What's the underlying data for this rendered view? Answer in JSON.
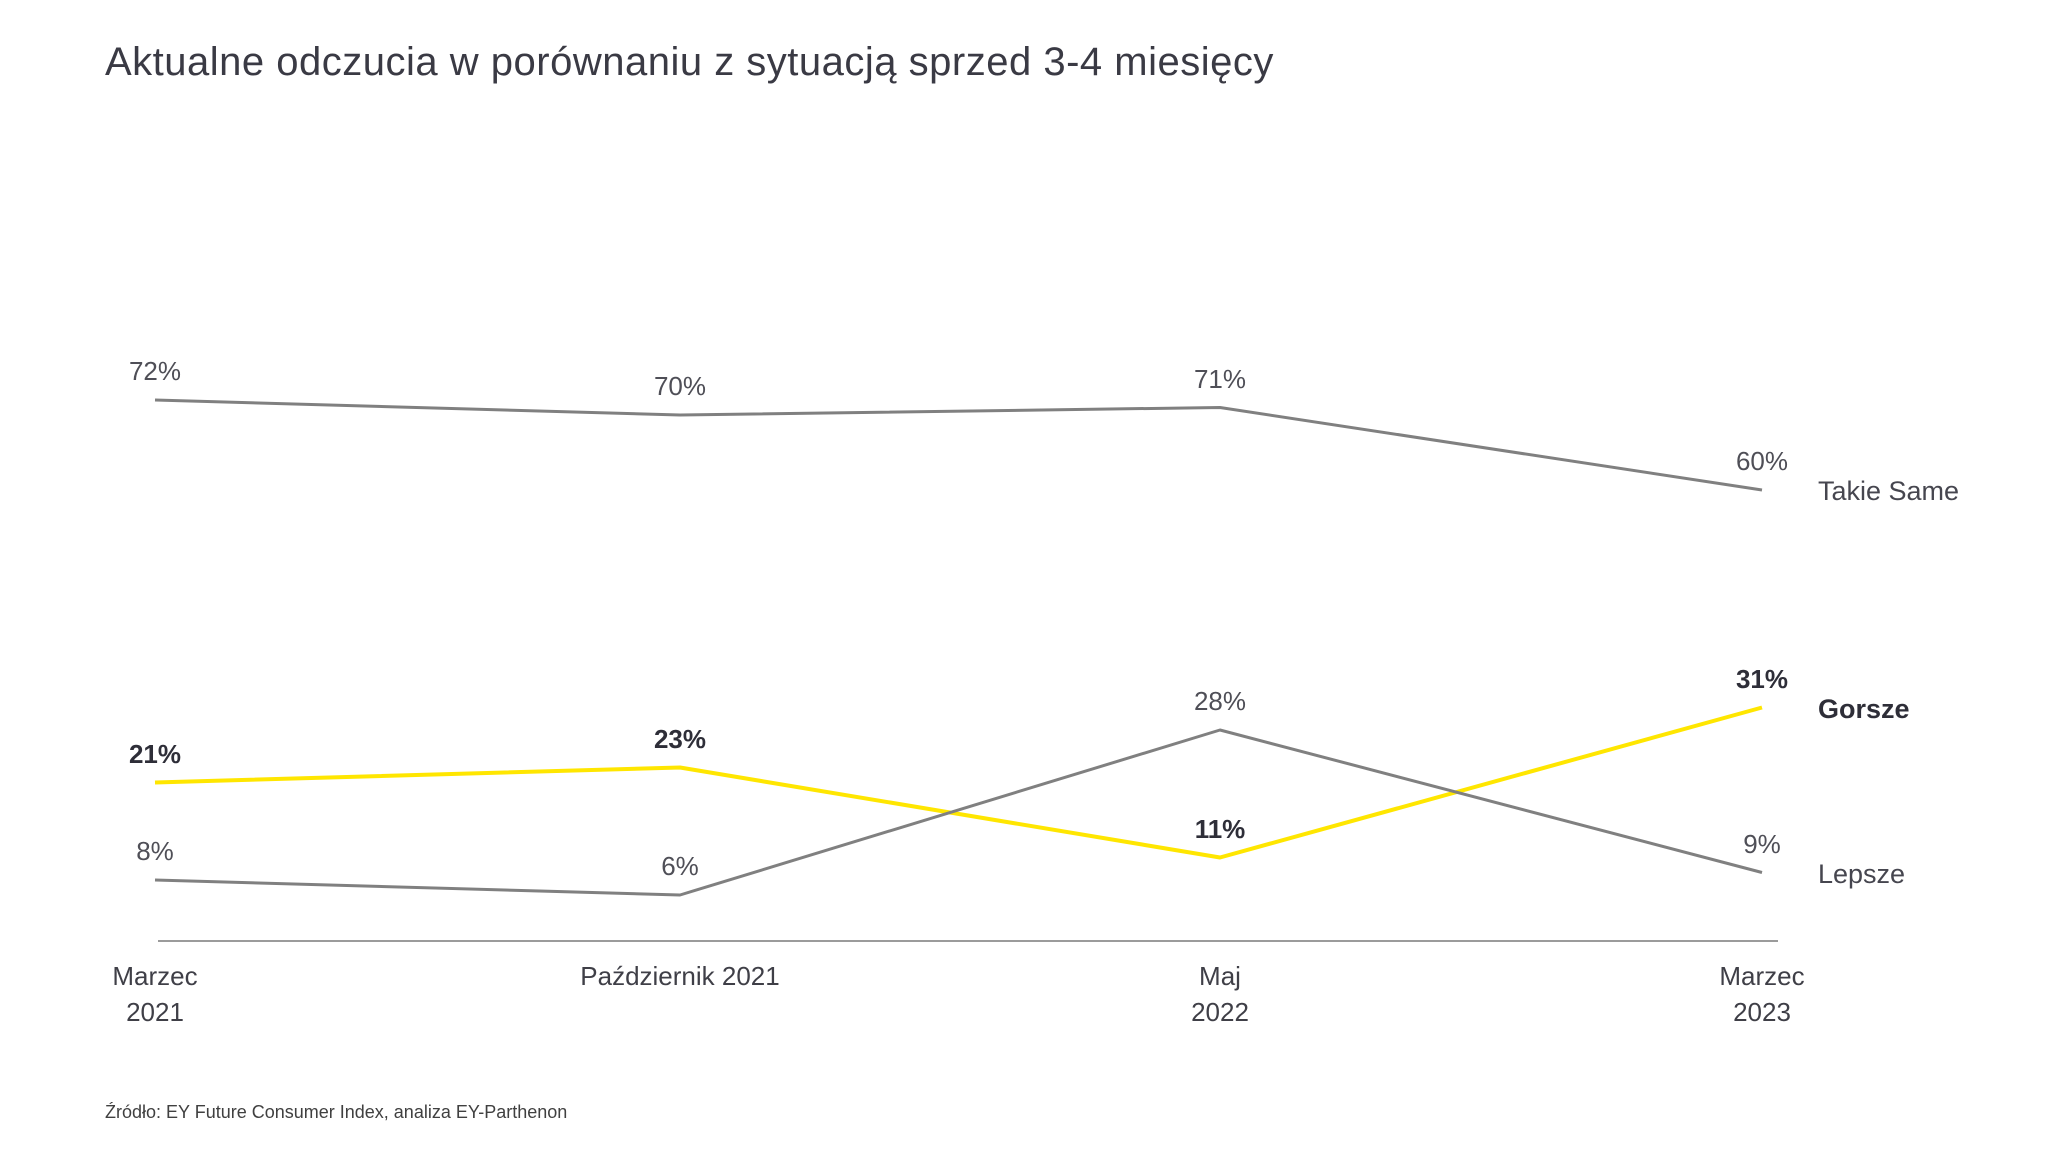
{
  "title": "Aktualne odczucia w porównaniu z sytuacją sprzed 3-4 miesięcy",
  "source": "Źródło: EY Future Consumer Index, analiza EY-Parthenon",
  "colors": {
    "accent_yellow": "#ffe600",
    "line_gray": "#808080",
    "axis_gray": "#9b9b9b",
    "label_dark": "#2e2e38",
    "label_gray": "#4f4f57",
    "title_dark": "#3a3a44"
  },
  "chart_data": {
    "type": "line",
    "title": "Aktualne odczucia w porównaniu z sytuacją sprzed 3-4 miesięcy",
    "categories": [
      "Marzec\n2021",
      "Październik 2021",
      "Maj\n2022",
      "Marzec\n2023"
    ],
    "series": [
      {
        "name": "Takie Same",
        "values": [
          72,
          70,
          71,
          60
        ],
        "color": "#808080",
        "bold_labels": false
      },
      {
        "name": "Gorsze",
        "values": [
          21,
          23,
          11,
          31
        ],
        "color": "#ffe600",
        "bold_labels": true
      },
      {
        "name": "Lepsze",
        "values": [
          8,
          6,
          28,
          9
        ],
        "color": "#808080",
        "bold_labels": false
      }
    ],
    "value_suffix": "%",
    "xlabel": "",
    "ylabel": "",
    "ylim": [
      0,
      100
    ],
    "grid": false,
    "data_labels": true,
    "legend_position": "right-of-line-end",
    "baseline_axis": true
  }
}
